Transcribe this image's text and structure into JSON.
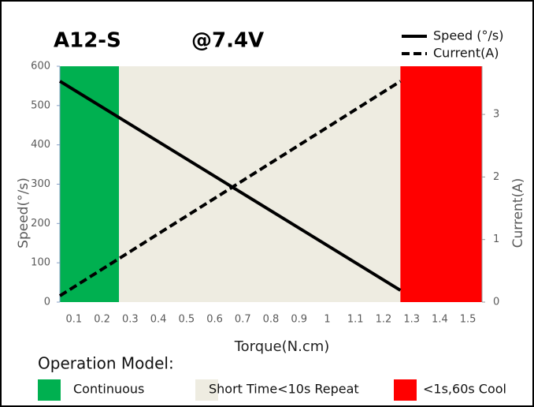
{
  "chart_data": {
    "type": "line",
    "title": "A12-S",
    "subtitle": "@7.4V",
    "x_label": "Torque(N.cm)",
    "y_label": "Speed(°/s)",
    "y2_label": "Current(A)",
    "x": [
      0.05,
      1.26
    ],
    "series": [
      {
        "name": "Speed (°/s)",
        "color": "#000000",
        "style": "solid",
        "values": [
          562,
          30
        ]
      },
      {
        "name": "Current(A)",
        "color": "#000000",
        "style": "dashed",
        "axis": "y2",
        "values": [
          0.1,
          3.53
        ]
      }
    ],
    "xlim": [
      0.05,
      1.55
    ],
    "xticks": [
      0.1,
      0.2,
      0.3,
      0.4,
      0.5,
      0.6,
      0.7,
      0.8,
      0.9,
      1,
      1.1,
      1.2,
      1.3,
      1.4,
      1.5
    ],
    "ylim": [
      0,
      600
    ],
    "yticks": [
      0,
      100,
      200,
      300,
      400,
      500,
      600
    ],
    "y2lim": [
      0,
      3.77
    ],
    "y2ticks": [
      0,
      1,
      2,
      3
    ],
    "legend_title": "Operation Model:",
    "regions": [
      {
        "name": "Continuous",
        "color": "#00b050",
        "range": [
          0.05,
          0.26
        ]
      },
      {
        "name": "Short Time<10s Repeat",
        "color": "#eeece1",
        "range": [
          0.26,
          1.26
        ]
      },
      {
        "name": "<1s,60s Cool",
        "color": "#ff0000",
        "range": [
          1.26,
          1.55
        ]
      }
    ]
  }
}
